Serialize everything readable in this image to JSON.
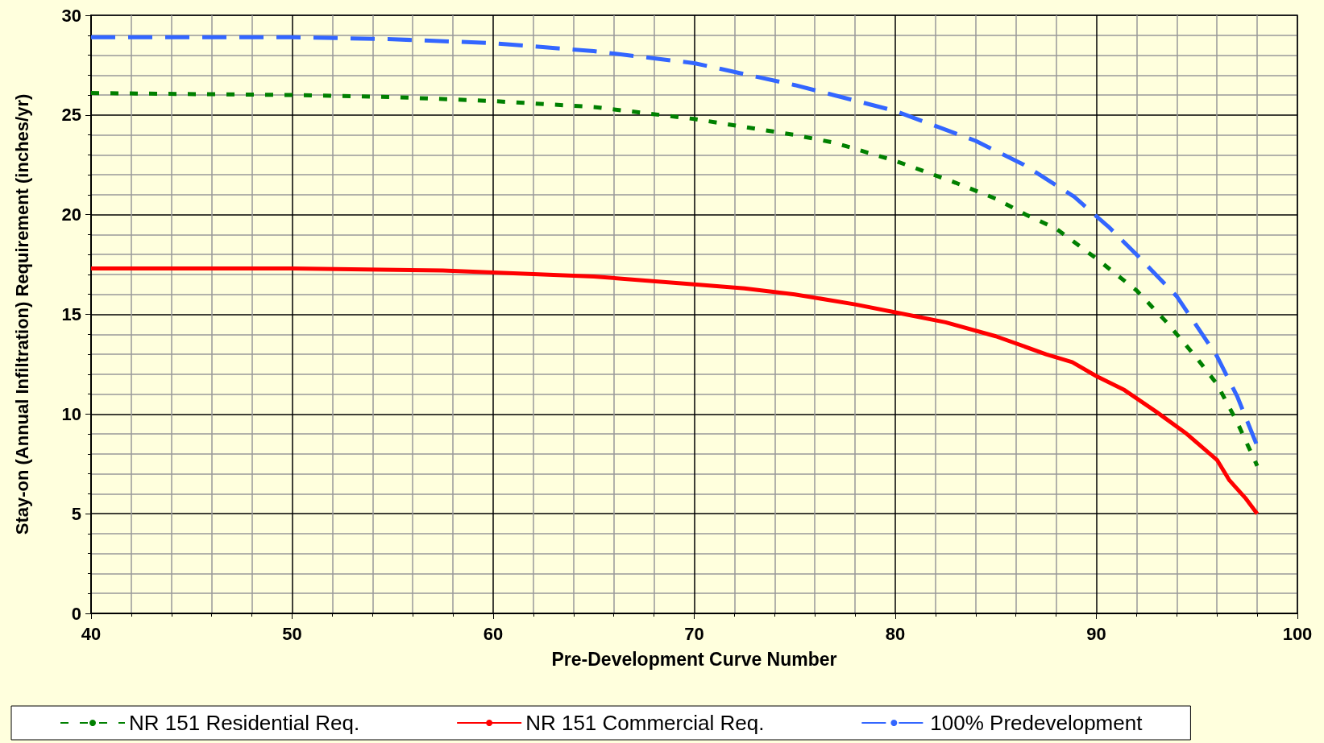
{
  "chart_data": {
    "type": "line",
    "xlabel": "Pre-Development Curve Number",
    "ylabel": "Stay-on (Annual Infiltration) Requirement (inches/yr)",
    "xlim": [
      40,
      100
    ],
    "xticks": [
      40,
      50,
      60,
      70,
      80,
      90,
      100
    ],
    "ylim": [
      0,
      30
    ],
    "yticks": [
      0,
      5,
      10,
      15,
      20,
      25,
      30
    ],
    "grid": true,
    "legend": "bottom",
    "marker": "none",
    "series": [
      {
        "name": "NR 151 Residential Req.",
        "color": "#008000",
        "line_style": "dotted",
        "x": [
          40,
          50,
          55,
          60,
          65,
          70,
          75,
          77,
          80,
          83,
          85,
          86.5,
          88,
          90,
          92,
          93.5,
          95,
          96,
          97,
          98
        ],
        "values": [
          26.1,
          26.0,
          25.9,
          25.7,
          25.4,
          24.8,
          24.0,
          23.6,
          22.7,
          21.6,
          20.8,
          20.0,
          19.3,
          17.8,
          16.2,
          14.6,
          12.8,
          11.5,
          9.6,
          7.4
        ]
      },
      {
        "name": "NR 151 Commercial Req.",
        "color": "#ff0000",
        "line_style": "solid",
        "x": [
          40,
          50,
          57.5,
          60,
          65,
          70,
          72.5,
          75,
          78,
          80,
          82.5,
          85,
          87.5,
          88.8,
          90,
          91.4,
          93,
          94.5,
          96,
          96.6,
          97.4,
          98
        ],
        "values": [
          17.3,
          17.3,
          17.2,
          17.1,
          16.9,
          16.5,
          16.3,
          16.0,
          15.5,
          15.1,
          14.6,
          13.9,
          13.0,
          12.6,
          11.9,
          11.2,
          10.1,
          9.0,
          7.7,
          6.7,
          5.8,
          5.0
        ]
      },
      {
        "name": "100% Predevelopment",
        "color": "#3366ff",
        "line_style": "dashed",
        "x": [
          40,
          50,
          55,
          60,
          65,
          70,
          75,
          80,
          84,
          86.4,
          88.9,
          89.8,
          90.6,
          92,
          94,
          96,
          97,
          98
        ],
        "values": [
          28.9,
          28.9,
          28.8,
          28.6,
          28.2,
          27.6,
          26.5,
          25.2,
          23.7,
          22.5,
          20.9,
          20.1,
          19.4,
          18.0,
          15.9,
          12.9,
          10.9,
          8.4
        ]
      }
    ]
  }
}
